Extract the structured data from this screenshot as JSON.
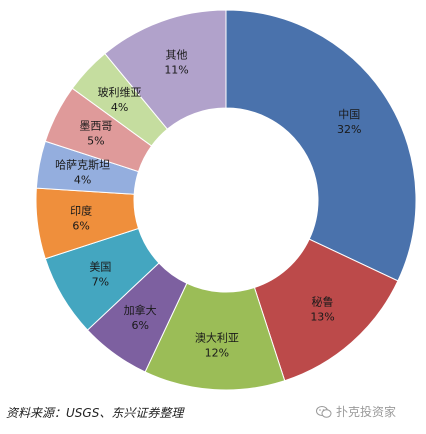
{
  "chart_data": {
    "type": "pie",
    "title": "",
    "categories": [
      "中国",
      "秘鲁",
      "澳大利亚",
      "加拿大",
      "美国",
      "印度",
      "哈萨克斯坦",
      "墨西哥",
      "玻利维亚",
      "其他"
    ],
    "values": [
      32,
      13,
      12,
      6,
      7,
      6,
      4,
      5,
      4,
      11
    ],
    "value_labels": [
      "32%",
      "13%",
      "12%",
      "6%",
      "7%",
      "6%",
      "4%",
      "5%",
      "4%",
      "11%"
    ],
    "colors": [
      "#4a72ac",
      "#bc4a4a",
      "#9bbd57",
      "#7d60a0",
      "#44a6c0",
      "#ef8f3c",
      "#94aede",
      "#df9a9a",
      "#c5dd9f",
      "#b1a2cb"
    ],
    "donut": true,
    "legend": "none"
  },
  "footer": {
    "source": "资料来源：USGS、东兴证券整理",
    "watermark": "扑克投资家",
    "watermark_icon": "wechat-icon"
  }
}
